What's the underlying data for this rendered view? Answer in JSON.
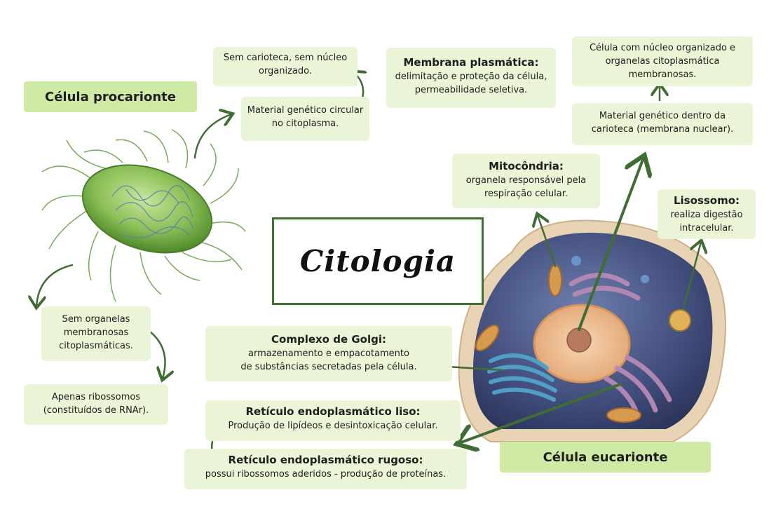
{
  "title": "Citologia",
  "colors": {
    "box_bg": "#e9f5d6",
    "header_bg": "#cfeaa4",
    "arrow": "#3f6d33",
    "frame": "#3e6f35"
  },
  "procariote": {
    "header": "Célula procarionte",
    "carioteca": "Sem carioteca, sem núcleo organizado.",
    "material": "Material genético circular no citoplasma.",
    "organelas": "Sem organelas membranosas citoplasmáticas.",
    "ribossomos": "Apenas ribossomos (constituídos de RNAr)."
  },
  "eucariote": {
    "header": "Célula eucarionte",
    "nucleo": "Célula com núcleo organizado e organelas citoplasmática membranosas.",
    "material": "Material genético dentro da carioteca (membrana nuclear).",
    "membrana": {
      "title": "Membrana plasmática:",
      "text": "delimitação e proteção da célula, permeabilidade seletiva."
    },
    "mitocondria": {
      "title": "Mitocôndria:",
      "text": "organela responsável pela respiração celular."
    },
    "lisossomo": {
      "title": "Lisossomo:",
      "text": "realiza digestão intracelular."
    },
    "golgi": {
      "title": "Complexo de Golgi:",
      "text1": "armazenamento e empacotamento",
      "text2": "de substâncias secretadas pela célula."
    },
    "rel": {
      "title": "Retículo endoplasmático liso:",
      "text": "Produção de lipídeos e desintoxicação celular."
    },
    "rer": {
      "title": "Retículo endoplasmático rugoso:",
      "text": "possui ribossomos aderidos - produção de proteínas."
    }
  }
}
